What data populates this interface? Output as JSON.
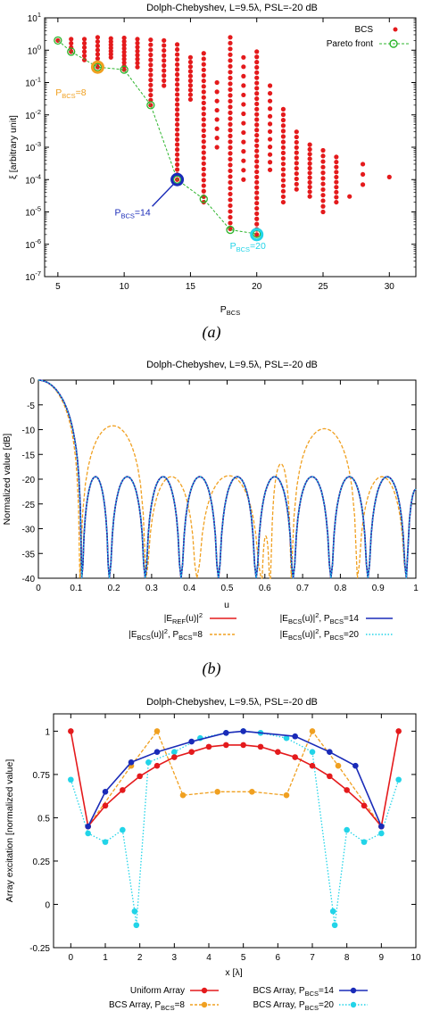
{
  "chart_data": [
    {
      "panel": "(a)",
      "type": "scatter",
      "title": "Dolph-Chebyshev, L=9.5λ, PSL=-20 dB",
      "xlabel": "P_BCS",
      "ylabel": "ξ [arbitrary unit]",
      "xlim": [
        4,
        32
      ],
      "ylim_log10": [
        -7,
        1
      ],
      "yscale": "log",
      "x_ticks": [
        "5",
        "10",
        "15",
        "20",
        "25",
        "30"
      ],
      "y_ticks": [
        "10^1",
        "10^0",
        "10^-1",
        "10^-2",
        "10^-3",
        "10^-4",
        "10^-5",
        "10^-6",
        "10^-7"
      ],
      "legend": {
        "position": "top-right",
        "entries": [
          "BCS",
          "Pareto front"
        ]
      },
      "bcs_columns": [
        {
          "x": 5,
          "ymin": 2.0,
          "ymax": 2.0,
          "n": 1
        },
        {
          "x": 6,
          "ymin": 0.9,
          "ymax": 2.2,
          "n": 4
        },
        {
          "x": 7,
          "ymin": 0.5,
          "ymax": 2.2,
          "n": 6
        },
        {
          "x": 8,
          "ymin": 0.3,
          "ymax": 2.5,
          "n": 8
        },
        {
          "x": 9,
          "ymin": 0.6,
          "ymax": 2.3,
          "n": 7
        },
        {
          "x": 10,
          "ymin": 0.25,
          "ymax": 2.4,
          "n": 10
        },
        {
          "x": 11,
          "ymin": 0.3,
          "ymax": 2.2,
          "n": 8
        },
        {
          "x": 12,
          "ymin": 0.02,
          "ymax": 2.1,
          "n": 14
        },
        {
          "x": 13,
          "ymin": 0.08,
          "ymax": 2.0,
          "n": 10
        },
        {
          "x": 14,
          "ymin": 0.0001,
          "ymax": 1.5,
          "n": 28
        },
        {
          "x": 15,
          "ymin": 0.03,
          "ymax": 0.6,
          "n": 10
        },
        {
          "x": 16,
          "ymin": 2e-05,
          "ymax": 0.8,
          "n": 28
        },
        {
          "x": 17,
          "ymin": 0.001,
          "ymax": 0.1,
          "n": 8
        },
        {
          "x": 18,
          "ymin": 3e-06,
          "ymax": 2.5,
          "n": 34
        },
        {
          "x": 19,
          "ymin": 0.0001,
          "ymax": 0.6,
          "n": 14
        },
        {
          "x": 20,
          "ymin": 2e-06,
          "ymax": 0.9,
          "n": 36
        },
        {
          "x": 21,
          "ymin": 0.0002,
          "ymax": 0.08,
          "n": 12
        },
        {
          "x": 22,
          "ymin": 2e-05,
          "ymax": 0.015,
          "n": 18
        },
        {
          "x": 23,
          "ymin": 5e-05,
          "ymax": 0.003,
          "n": 12
        },
        {
          "x": 24,
          "ymin": 3e-05,
          "ymax": 0.0012,
          "n": 12
        },
        {
          "x": 25,
          "ymin": 1e-05,
          "ymax": 0.0008,
          "n": 12
        },
        {
          "x": 26,
          "ymin": 2e-05,
          "ymax": 0.0005,
          "n": 10
        },
        {
          "x": 27,
          "ymin": 3e-05,
          "ymax": 3e-05,
          "n": 1
        },
        {
          "x": 28,
          "ymin": 7e-05,
          "ymax": 0.0003,
          "n": 3
        },
        {
          "x": 30,
          "ymin": 0.00012,
          "ymax": 0.00012,
          "n": 1
        }
      ],
      "pareto_front": {
        "x": [
          5,
          6,
          8,
          10,
          12,
          14,
          16,
          18,
          20
        ],
        "y": [
          2.0,
          0.9,
          0.3,
          0.25,
          0.02,
          0.0001,
          2.5e-05,
          2.8e-06,
          2.1e-06
        ]
      },
      "annotations": [
        {
          "label": "P",
          "sub": "BCS",
          "suffix": "=8",
          "x": 8,
          "y": 0.3,
          "color": "#f0a020"
        },
        {
          "label": "P",
          "sub": "BCS",
          "suffix": "=14",
          "x": 14,
          "y": 0.0001,
          "color": "#1a2bb8"
        },
        {
          "label": "P",
          "sub": "BCS",
          "suffix": "=20",
          "x": 20,
          "y": 2e-06,
          "color": "#22d4e8"
        }
      ],
      "caption": "(a)"
    },
    {
      "panel": "(b)",
      "type": "line",
      "title": "Dolph-Chebyshev, L=9.5λ, PSL=-20 dB",
      "xlabel": "u",
      "ylabel": "Normalized value [dB]",
      "xlim": [
        0,
        1
      ],
      "ylim": [
        -40,
        0
      ],
      "x_ticks": [
        "0",
        "0.1",
        "0.2",
        "0.3",
        "0.4",
        "0.5",
        "0.6",
        "0.7",
        "0.8",
        "0.9",
        "1"
      ],
      "y_ticks": [
        "0",
        "-5",
        "-10",
        "-15",
        "-20",
        "-25",
        "-30",
        "-35",
        "-40"
      ],
      "legend": {
        "position": "bottom-outside",
        "entries": [
          "|E_REF(u)|^2",
          "|E_BCS(u)|^2, P_BCS=14",
          "|E_BCS(u)|^2, P_BCS=8",
          "|E_BCS(u)|^2, P_BCS=20"
        ]
      },
      "series": [
        {
          "name": "|E_REF(u)|^2",
          "color": "#e41a1c",
          "dash": "solid",
          "nulls": [
            0.115,
            0.188,
            0.283,
            0.378,
            0.477,
            0.577,
            0.675,
            0.775,
            0.873,
            0.975
          ],
          "lobe_peaks": [
            [
              0.15,
              -19.5
            ],
            [
              0.235,
              -19.5
            ],
            [
              0.33,
              -19.5
            ],
            [
              0.428,
              -19.5
            ],
            [
              0.527,
              -19.5
            ],
            [
              0.626,
              -19.5
            ],
            [
              0.725,
              -19.5
            ],
            [
              0.824,
              -19.5
            ],
            [
              0.924,
              -19.5
            ]
          ]
        },
        {
          "name": "|E_BCS(u)|^2, P_BCS=14",
          "color": "#1a2bb8",
          "dash": "solid",
          "same_as": "|E_REF(u)|^2"
        },
        {
          "name": "|E_BCS(u)|^2, P_BCS=8",
          "color": "#f0a020",
          "dash": "dashed",
          "nulls": [
            0.11,
            0.285,
            0.42,
            0.59,
            0.615,
            0.67,
            0.845,
            0.975
          ],
          "lobe_peaks": [
            [
              0.2,
              -9.2
            ],
            [
              0.352,
              -19.5
            ],
            [
              0.505,
              -19.3
            ],
            [
              0.642,
              -31.5
            ],
            [
              0.757,
              -16.9
            ],
            [
              0.91,
              -9.8
            ]
          ]
        },
        {
          "name": "|E_BCS(u)|^2, P_BCS=20",
          "color": "#22d4e8",
          "dash": "dotted",
          "same_as": "|E_REF(u)|^2"
        }
      ],
      "caption": "(b)"
    },
    {
      "panel": "(c)",
      "type": "line",
      "title": "Dolph-Chebyshev, L=9.5λ, PSL=-20 dB",
      "xlabel": "x [λ]",
      "ylabel": "Array excitation [normalized value]",
      "xlim": [
        -0.5,
        10
      ],
      "ylim": [
        -0.25,
        1.1
      ],
      "x_ticks": [
        "0",
        "1",
        "2",
        "3",
        "4",
        "5",
        "6",
        "7",
        "8",
        "9",
        "10"
      ],
      "y_ticks": [
        "1",
        "0.75",
        "0.5",
        "0.25",
        "0",
        "-0.25"
      ],
      "legend": {
        "position": "bottom-outside",
        "entries": [
          "Uniform Array",
          "BCS Array, P_BCS=14",
          "BCS Array, P_BCS=8",
          "BCS Array, P_BCS=20"
        ]
      },
      "series": [
        {
          "name": "Uniform Array",
          "color": "#e41a1c",
          "dash": "solid",
          "x": [
            0,
            0.5,
            1.0,
            1.5,
            2.0,
            2.5,
            3.0,
            3.5,
            4.0,
            4.5,
            5.0,
            5.5,
            6.0,
            6.5,
            7.0,
            7.5,
            8.0,
            8.5,
            9.0,
            9.5
          ],
          "y": [
            1.0,
            0.45,
            0.57,
            0.66,
            0.74,
            0.8,
            0.85,
            0.88,
            0.91,
            0.92,
            0.92,
            0.91,
            0.88,
            0.85,
            0.8,
            0.74,
            0.66,
            0.57,
            0.45,
            1.0
          ]
        },
        {
          "name": "BCS Array, P_BCS=14",
          "color": "#1a2bb8",
          "dash": "solid",
          "x": [
            0.5,
            1.0,
            1.75,
            2.5,
            3.5,
            4.5,
            5.0,
            6.5,
            7.5,
            8.25,
            9.0
          ],
          "y": [
            0.45,
            0.65,
            0.82,
            0.88,
            0.94,
            0.99,
            1.0,
            0.97,
            0.88,
            0.8,
            0.45
          ]
        },
        {
          "name": "BCS Array, P_BCS=8",
          "color": "#f0a020",
          "dash": "dashed",
          "x": [
            0.5,
            1.75,
            2.5,
            3.25,
            4.25,
            5.25,
            6.25,
            7.0,
            7.75,
            9.0
          ],
          "y": [
            0.45,
            0.8,
            1.0,
            0.63,
            0.65,
            0.65,
            0.63,
            1.0,
            0.8,
            0.45
          ]
        },
        {
          "name": "BCS Array, P_BCS=20",
          "color": "#22d4e8",
          "dash": "dotted",
          "x": [
            0,
            0.5,
            1.0,
            1.5,
            1.85,
            1.9,
            2.25,
            3.0,
            3.75,
            4.5,
            5.0,
            5.5,
            6.25,
            7.0,
            7.6,
            7.65,
            8.0,
            8.5,
            9.0,
            9.5
          ],
          "y": [
            0.72,
            0.41,
            0.36,
            0.43,
            -0.04,
            -0.12,
            0.82,
            0.88,
            0.96,
            0.99,
            1.0,
            0.99,
            0.96,
            0.88,
            -0.04,
            -0.12,
            0.43,
            0.36,
            0.41,
            0.72
          ]
        }
      ],
      "caption": ""
    }
  ]
}
